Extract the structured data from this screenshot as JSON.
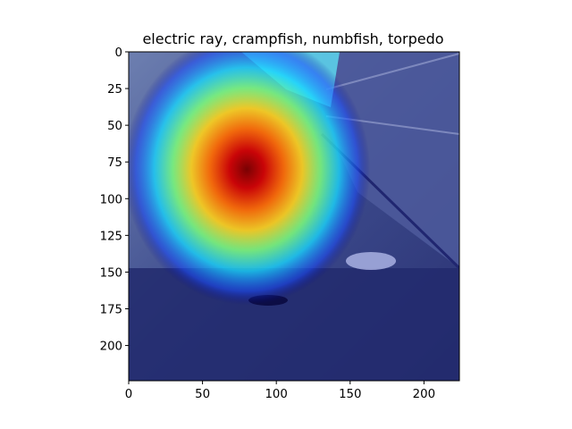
{
  "chart_data": {
    "type": "heatmap",
    "title": "electric ray, crampfish, numbfish, torpedo",
    "xlabel": "",
    "ylabel": "",
    "xlim": [
      0,
      224
    ],
    "ylim": [
      224,
      0
    ],
    "y_axis_inverted": true,
    "grid": false,
    "legend": "none",
    "x_ticks": [
      0,
      50,
      100,
      150,
      200
    ],
    "y_ticks": [
      0,
      25,
      50,
      75,
      100,
      125,
      150,
      175,
      200
    ],
    "colormap": "jet",
    "background": "photograph overlaid with attention heatmap",
    "hotspot": {
      "x": 80,
      "y": 80,
      "sigma_x": 38,
      "sigma_y": 42
    }
  }
}
